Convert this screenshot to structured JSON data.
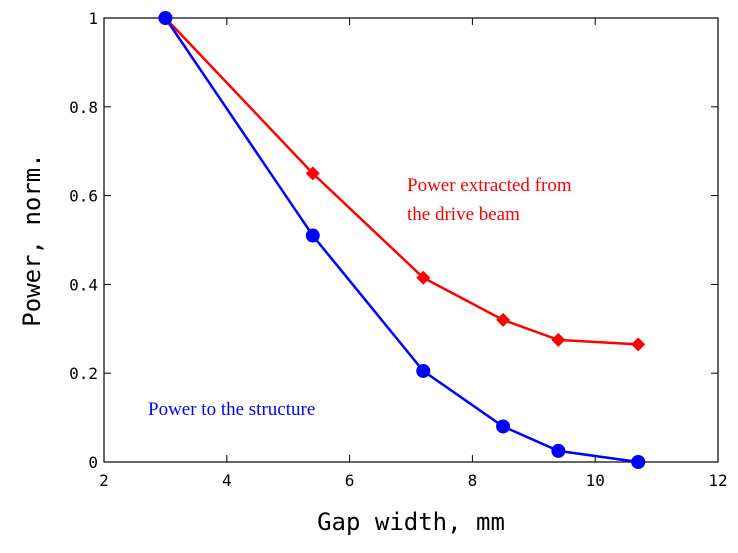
{
  "chart_data": {
    "type": "line",
    "title": "",
    "xlabel": "Gap width, mm",
    "ylabel": "Power, norm.",
    "xlim": [
      2,
      12
    ],
    "ylim": [
      0,
      1
    ],
    "x_ticks": [
      "2",
      "4",
      "6",
      "8",
      "10",
      "12"
    ],
    "y_ticks": [
      "0",
      "0.2",
      "0.4",
      "0.6",
      "0.8",
      "1"
    ],
    "grid": false,
    "series": [
      {
        "annotation": "Power extracted from the drive beam",
        "color": "#ff0000",
        "marker": "diamond",
        "x": [
          3.0,
          5.4,
          7.2,
          8.5,
          9.4,
          10.7
        ],
        "y": [
          1.0,
          0.65,
          0.415,
          0.32,
          0.275,
          0.265
        ]
      },
      {
        "annotation": "Power to the structure",
        "color": "#0000ff",
        "marker": "circle",
        "x": [
          3.0,
          5.4,
          7.2,
          8.5,
          9.4,
          10.7
        ],
        "y": [
          1.0,
          0.51,
          0.205,
          0.08,
          0.025,
          0.0
        ]
      }
    ],
    "annotations": [
      {
        "lines": [
          "Power extracted from",
          "the drive beam"
        ],
        "color": "#ff0000"
      },
      {
        "lines": [
          "Power to the structure"
        ],
        "color": "#0000ff"
      }
    ]
  }
}
